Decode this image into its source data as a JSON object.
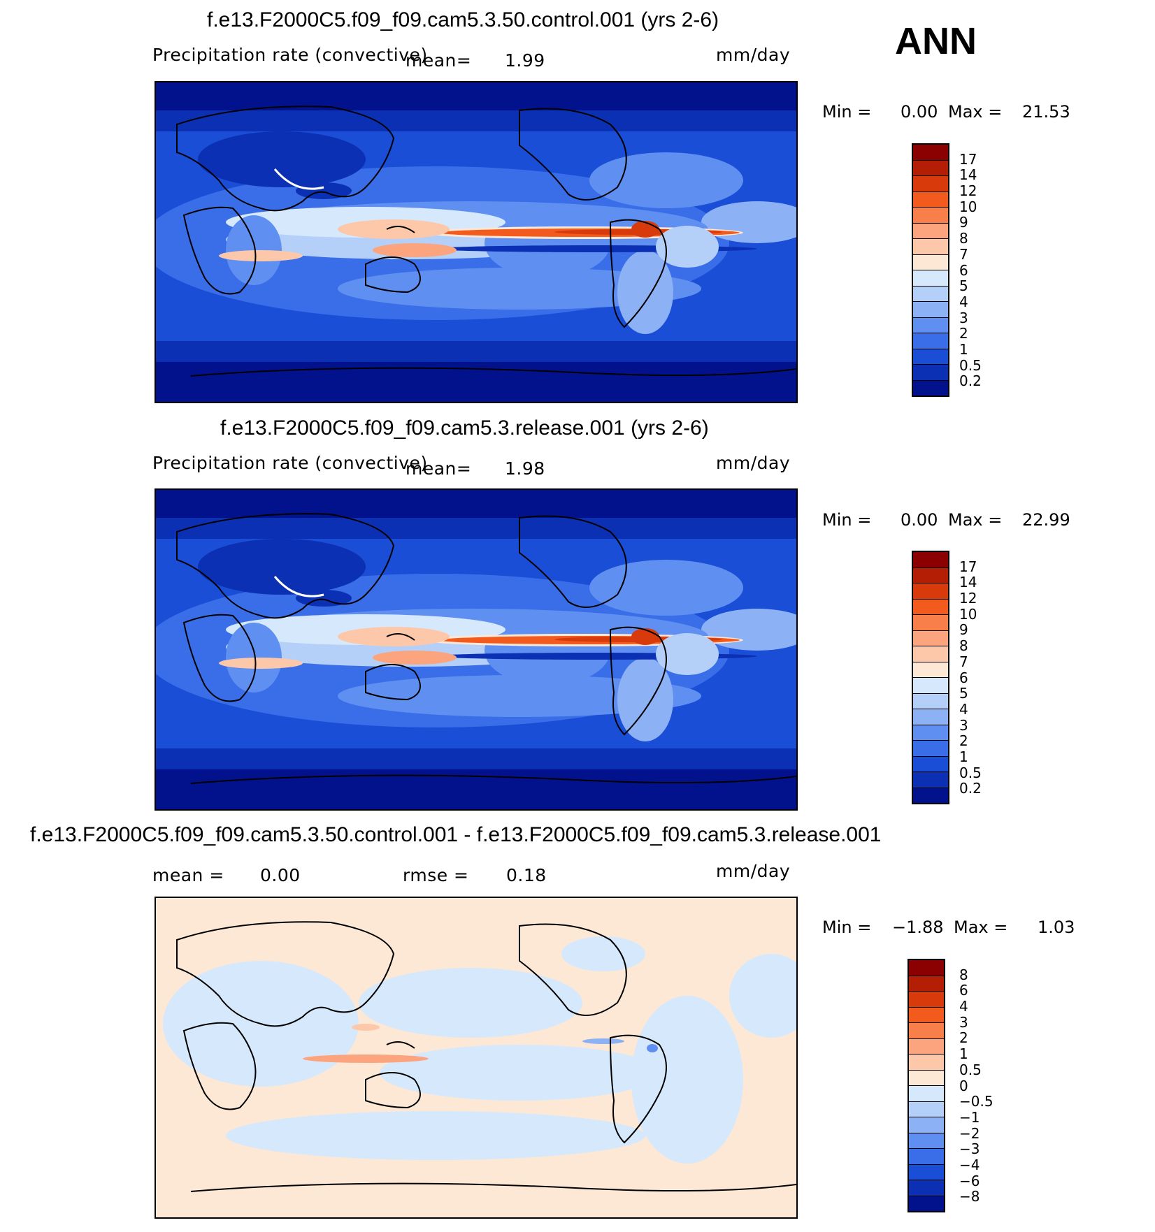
{
  "season": "ANN",
  "panels": [
    {
      "title": "f.e13.F2000C5.f09_f09.cam5.3.50.control.001 (yrs 2-6)",
      "left_text": "Precipitation rate (convective)",
      "mean_label": "mean=",
      "mean_value": "1.99",
      "units": "mm/day",
      "min_label": "Min =",
      "min_value": "0.00",
      "max_label": "Max =",
      "max_value": "21.53",
      "colorbar": {
        "labels": [
          "17",
          "14",
          "12",
          "10",
          "9",
          "8",
          "7",
          "6",
          "5",
          "4",
          "3",
          "2",
          "1",
          "0.5",
          "0.2"
        ],
        "colors": [
          "#8b0000",
          "#b41e04",
          "#d93a0c",
          "#f25a1e",
          "#f97f4a",
          "#fba47d",
          "#fdc8aa",
          "#fde8d6",
          "#d6e8fb",
          "#b5d0f8",
          "#8cb1f4",
          "#5f8ff0",
          "#3a6ee8",
          "#1a4ed6",
          "#0b30b4",
          "#02128c"
        ]
      }
    },
    {
      "title": "f.e13.F2000C5.f09_f09.cam5.3.release.001 (yrs 2-6)",
      "left_text": "Precipitation rate (convective)",
      "mean_label": "mean=",
      "mean_value": "1.98",
      "units": "mm/day",
      "min_label": "Min =",
      "min_value": "0.00",
      "max_label": "Max =",
      "max_value": "22.99",
      "colorbar": {
        "labels": [
          "17",
          "14",
          "12",
          "10",
          "9",
          "8",
          "7",
          "6",
          "5",
          "4",
          "3",
          "2",
          "1",
          "0.5",
          "0.2"
        ],
        "colors": [
          "#8b0000",
          "#b41e04",
          "#d93a0c",
          "#f25a1e",
          "#f97f4a",
          "#fba47d",
          "#fdc8aa",
          "#fde8d6",
          "#d6e8fb",
          "#b5d0f8",
          "#8cb1f4",
          "#5f8ff0",
          "#3a6ee8",
          "#1a4ed6",
          "#0b30b4",
          "#02128c"
        ]
      }
    },
    {
      "title": "f.e13.F2000C5.f09_f09.cam5.3.50.control.001 - f.e13.F2000C5.f09_f09.cam5.3.release.001",
      "mean_label": "mean =",
      "mean_value": "0.00",
      "rmse_label": "rmse =",
      "rmse_value": "0.18",
      "units": "mm/day",
      "min_label": "Min =",
      "min_value": "−1.88",
      "max_label": "Max =",
      "max_value": "1.03",
      "colorbar": {
        "labels": [
          "8",
          "6",
          "4",
          "3",
          "2",
          "1",
          "0.5",
          "0",
          "−0.5",
          "−1",
          "−2",
          "−3",
          "−4",
          "−6",
          "−8"
        ],
        "colors": [
          "#8b0000",
          "#b41e04",
          "#d93a0c",
          "#f25a1e",
          "#f97f4a",
          "#fba47d",
          "#fdc8aa",
          "#fde8d6",
          "#d6e8fb",
          "#b5d0f8",
          "#8cb1f4",
          "#5f8ff0",
          "#3a6ee8",
          "#1a4ed6",
          "#0b30b4",
          "#02128c"
        ]
      }
    }
  ],
  "styles": {
    "ocean_deep": "#03158c",
    "ocean_mid": "#1a4ed6",
    "diff_positive": "#fde8d6",
    "diff_negative": "#d6e8fb"
  }
}
